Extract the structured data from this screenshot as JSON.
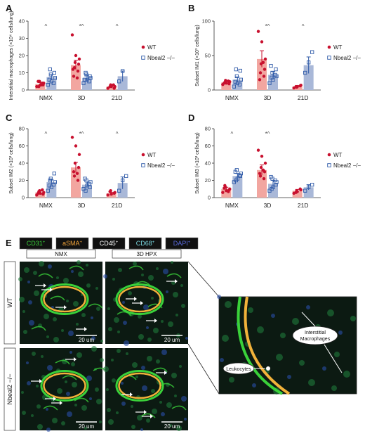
{
  "panels": [
    {
      "letter": "A",
      "chart_data": {
        "type": "bar",
        "ylabel": "Interstitial macrophages (×10⁴ cells/lung)",
        "ylim": [
          0,
          40
        ],
        "yticks": [
          "0",
          "10",
          "20",
          "30",
          "40"
        ],
        "categories": [
          "NMX",
          "3D",
          "21D"
        ],
        "significance": [
          "^",
          "*^",
          "^"
        ],
        "series": [
          {
            "name": "WT",
            "color": "#c8102e",
            "values": [
              3.5,
              14.5,
              2.0
            ],
            "errors": [
              0.8,
              2.8,
              0.4
            ],
            "points": [
              [
                2,
                3,
                4,
                5,
                3,
                2,
                4,
                5,
                3
              ],
              [
                32,
                20,
                18,
                16,
                15,
                13,
                11,
                8,
                7,
                12
              ],
              [
                1,
                2,
                2,
                3,
                1,
                2,
                3
              ]
            ]
          },
          {
            "name": "Nbeal2 −/−",
            "color": "#2f5aa8",
            "values": [
              7.5,
              7.0,
              8.0
            ],
            "errors": [
              1.5,
              1.6,
              3.0
            ],
            "points": [
              [
                3,
                5,
                7,
                9,
                10,
                12,
                4,
                6
              ],
              [
                4,
                6,
                7,
                9,
                8,
                10,
                5,
                6
              ],
              [
                5,
                11
              ]
            ]
          }
        ]
      }
    },
    {
      "letter": "B",
      "chart_data": {
        "type": "bar",
        "ylabel": "Subset IM1 (×10³ cells/lung)",
        "ylim": [
          0,
          100
        ],
        "yticks": [
          "0",
          "50",
          "100"
        ],
        "categories": [
          "NMX",
          "3D",
          "21D"
        ],
        "significance": [
          "",
          "*^",
          "^"
        ],
        "series": [
          {
            "name": "WT",
            "color": "#c8102e",
            "values": [
              11,
              45,
              5
            ],
            "errors": [
              2,
              12,
              1.5
            ],
            "points": [
              [
                8,
                10,
                12,
                14,
                9,
                11,
                13,
                10
              ],
              [
                85,
                70,
                45,
                38,
                30,
                25,
                20,
                15,
                40
              ],
              [
                3,
                5,
                7,
                4,
                6,
                5
              ]
            ]
          },
          {
            "name": "Nbeal2 −/−",
            "color": "#2f5aa8",
            "values": [
              15,
              22,
              36
            ],
            "errors": [
              4,
              5,
              12
            ],
            "points": [
              [
                5,
                10,
                15,
                20,
                28,
                30,
                8,
                12
              ],
              [
                10,
                15,
                20,
                25,
                30,
                18,
                22,
                35
              ],
              [
                25,
                40,
                55
              ]
            ]
          }
        ]
      }
    },
    {
      "letter": "C",
      "chart_data": {
        "type": "bar",
        "ylabel": "Subset IM2 (×10³ cells/lung)",
        "ylim": [
          0,
          80
        ],
        "yticks": [
          "0",
          "20",
          "40",
          "60",
          "80"
        ],
        "categories": [
          "NMX",
          "3D",
          "21D"
        ],
        "significance": [
          "^",
          "*^",
          "^"
        ],
        "series": [
          {
            "name": "WT",
            "color": "#c8102e",
            "values": [
              6,
              35,
              5
            ],
            "errors": [
              1.5,
              6,
              1
            ],
            "points": [
              [
                3,
                5,
                6,
                8,
                4,
                7,
                9,
                5
              ],
              [
                70,
                60,
                50,
                40,
                35,
                25,
                20,
                30,
                28
              ],
              [
                3,
                4,
                6,
                8,
                5,
                7
              ]
            ]
          },
          {
            "name": "Nbeal2 −/−",
            "color": "#2f5aa8",
            "values": [
              18,
              15,
              17
            ],
            "errors": [
              3,
              3,
              7
            ],
            "points": [
              [
                8,
                12,
                18,
                22,
                28,
                20,
                15,
                14
              ],
              [
                10,
                14,
                18,
                20,
                12,
                8,
                16,
                22
              ],
              [
                8,
                20,
                25
              ]
            ]
          }
        ]
      }
    },
    {
      "letter": "D",
      "chart_data": {
        "type": "bar",
        "ylabel": "Subset IM3 (×10³ cells/lung)",
        "ylim": [
          0,
          80
        ],
        "yticks": [
          "0",
          "20",
          "40",
          "60",
          "80"
        ],
        "categories": [
          "NMX",
          "3D",
          "21D"
        ],
        "significance": [
          "^",
          "*^",
          ""
        ],
        "series": [
          {
            "name": "WT",
            "color": "#c8102e",
            "values": [
              10,
              32,
              8
            ],
            "errors": [
              2,
              6,
              1.5
            ],
            "points": [
              [
                6,
                8,
                10,
                12,
                9,
                14,
                7,
                11
              ],
              [
                55,
                48,
                40,
                35,
                30,
                25,
                22,
                28,
                32
              ],
              [
                5,
                7,
                9,
                8,
                10,
                6
              ]
            ]
          },
          {
            "name": "Nbeal2 −/−",
            "color": "#2f5aa8",
            "values": [
              25,
              16,
              12
            ],
            "errors": [
              3,
              4,
              3
            ],
            "points": [
              [
                18,
                22,
                28,
                32,
                25,
                20,
                26,
                30
              ],
              [
                8,
                12,
                18,
                22,
                15,
                10,
                20,
                24
              ],
              [
                8,
                12,
                15
              ]
            ]
          }
        ]
      }
    }
  ],
  "legend": {
    "wt": "WT",
    "ko": "Nbeal2 −/−"
  },
  "panel_e": {
    "letter": "E",
    "stains": [
      {
        "label": "CD31",
        "sup": "+",
        "color": "#3ad13a"
      },
      {
        "label": "aSMA",
        "sup": "+",
        "color": "#f2a43a"
      },
      {
        "label": "CD45",
        "sup": "+",
        "color": "#ffffff"
      },
      {
        "label": "CD68",
        "sup": "+",
        "color": "#7ad8e0"
      },
      {
        "label": "DAPI",
        "sup": "+",
        "color": "#5a6be0"
      }
    ],
    "conditions": [
      "NMX",
      "3D HPX"
    ],
    "rows": [
      "WT",
      "Nbeal2 −/−"
    ],
    "scale_bar": "20 um",
    "callouts": {
      "interstitial_1": "Interstitial",
      "interstitial_2": "Macrophages",
      "leukocytes": "Leukocytes"
    }
  }
}
